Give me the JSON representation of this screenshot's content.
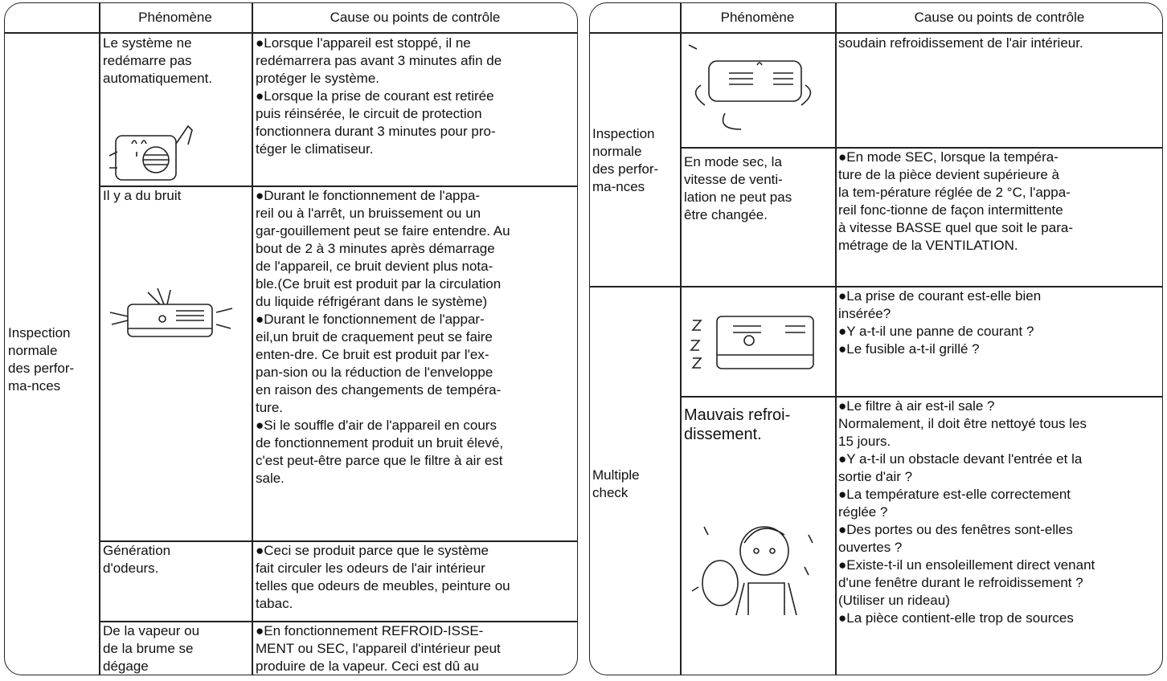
{
  "left": {
    "header": [
      "Phénomène",
      "Cause ou points de contrôle"
    ],
    "category": [
      "Inspection",
      "normale",
      "des perfor-",
      "ma-nces"
    ],
    "rows": [
      {
        "phenomenon": [
          "Le système ne",
          "redémarre pas",
          "automatiquement."
        ],
        "cause": [
          "●Lorsque l'appareil est stoppé, il ne",
          "redémarrera pas avant 3 minutes afin de",
          "protéger le système.",
          "●Lorsque la prise de courant est retirée",
          "puis réinsérée, le circuit de protection",
          "fonctionnera durant 3 minutes pour pro-",
          "téger le climatiseur."
        ]
      },
      {
        "phenomenon": [
          "Il y a du bruit"
        ],
        "cause": [
          "●Durant le fonctionnement de l'appa-",
          "reil ou à l'arrêt, un bruissement ou un",
          "gar-gouillement peut se faire entendre. Au",
          "bout de 2 à 3 minutes après démarrage",
          "de l'appareil, ce bruit devient plus nota-",
          "ble.(Ce bruit est produit par la circulation",
          "du liquide réfrigérant dans le système)",
          "●Durant le fonctionnement de l'appar-",
          "eil,un bruit de craquement peut se faire",
          "enten-dre. Ce bruit est produit par l'ex-",
          "pan-sion ou la réduction de l'enveloppe",
          "en raison des changements de tempéra-",
          "ture.",
          "●Si le souffle d'air de l'appareil en cours",
          "de fonctionnement produit un bruit élevé,",
          "c'est peut-être parce que le filtre à air est",
          "sale."
        ]
      },
      {
        "phenomenon": [
          "Génération",
          "d'odeurs."
        ],
        "cause": [
          "●Ceci se produit parce que le système",
          "fait circuler les odeurs de l'air intérieur",
          "telles que odeurs de meubles, peinture ou",
          "tabac."
        ]
      },
      {
        "phenomenon": [
          "De la vapeur ou",
          "de la brume se",
          "dégage"
        ],
        "cause": [
          "●En fonctionnement REFROID-ISSE-",
          "MENT ou SEC, l'appareil d'intérieur peut",
          "produire de la vapeur. Ceci est dû au"
        ]
      }
    ]
  },
  "right": {
    "header": [
      "Phénomène",
      "Cause ou points de contrôle"
    ],
    "groups": [
      {
        "category": [
          "Inspection",
          "normale",
          "des perfor-",
          "ma-nces"
        ]
      },
      {
        "category": [
          "Multiple",
          "check"
        ]
      }
    ],
    "rows": [
      {
        "cause": [
          "soudain refroidissement de l'air intérieur."
        ]
      },
      {
        "phenomenon": [
          "En mode sec, la",
          "vitesse de venti-",
          "lation ne peut pas",
          "être changée."
        ],
        "cause": [
          "●En mode SEC, lorsque la tempéra-",
          "ture de la pièce devient supérieure à",
          "la tem-pérature réglée de 2 °C, l'appa-",
          "reil fonc-tionne de façon intermittente",
          "à vitesse BASSE quel que soit le para-",
          "métrage de la VENTILATION."
        ]
      },
      {
        "cause": [
          "●La prise de courant est-elle bien",
          "insérée?",
          "●Y a-t-il une panne de courant ?",
          "●Le fusible a-t-il grillé ?"
        ]
      },
      {
        "phenomenon": [
          "Mauvais refroi-",
          "dissement."
        ],
        "cause": [
          "●Le filtre à air est-il sale ?",
          "Normalement, il doit être nettoyé tous les",
          "15 jours.",
          "●Y a-t-il un obstacle devant l'entrée et la",
          "sortie d'air ?",
          "●La température est-elle correctement",
          "réglée ?",
          "●Des portes ou des fenêtres sont-elles",
          "ouvertes ?",
          "●Existe-t-il un ensoleillement direct venant",
          "d'une fenêtre durant le refroidissement ?",
          "(Utiliser un rideau)",
          "●La pièce contient-elle trop de sources"
        ]
      }
    ]
  }
}
